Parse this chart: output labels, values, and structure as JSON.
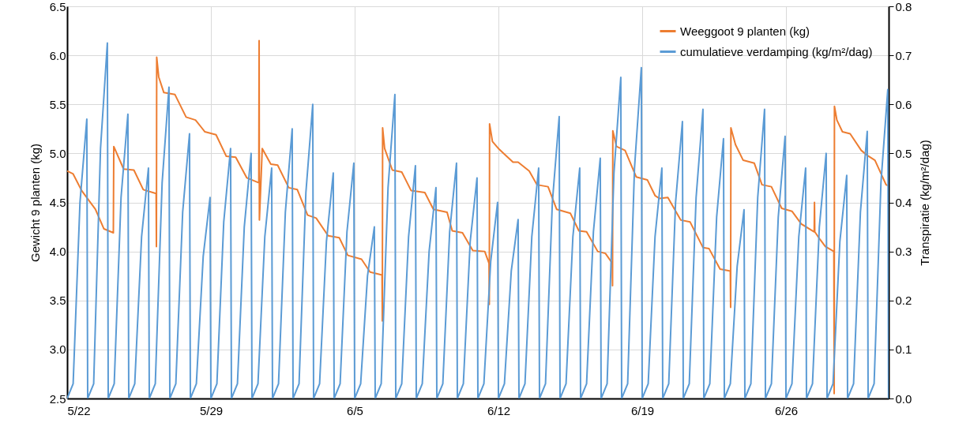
{
  "chart_data": {
    "type": "line",
    "ylabel": "Gewicht 9 planten (kg)",
    "y2label": "Transpiratie (kg/m²/dag)",
    "xlim": [
      "--05-22",
      "--07-01"
    ],
    "xticks": [
      {
        "value": "--05-22",
        "label": "5/22"
      },
      {
        "value": "--05-29",
        "label": "5/29"
      },
      {
        "value": "--06-05",
        "label": "6/5"
      },
      {
        "value": "--06-12",
        "label": "6/12"
      },
      {
        "value": "--06-19",
        "label": "6/19"
      },
      {
        "value": "--06-26",
        "label": "6/26"
      }
    ],
    "ylim": [
      2.5,
      6.5
    ],
    "yticks": [
      2.5,
      {
        "value": 3,
        "label": "3.0"
      },
      3.5,
      {
        "value": 4,
        "label": "4.0"
      },
      4.5,
      {
        "value": 5,
        "label": "5.0"
      },
      5.5,
      {
        "value": 6,
        "label": "6.0"
      },
      6.5
    ],
    "y2lim": [
      0,
      0.8
    ],
    "y2ticks": [
      {
        "value": 0,
        "label": "0.0"
      },
      0.1,
      0.2,
      0.3,
      0.4,
      0.5,
      0.6,
      0.7,
      0.8
    ],
    "grid": true,
    "legend": "top right",
    "line_style": "solid",
    "series": [
      {
        "name": "Weeggoot 9 planten (kg)",
        "color": "#ed7d31",
        "axis": "y",
        "x": [
          "--05-22T00:00",
          "--05-22T07:00",
          "--05-22T17:00",
          "--05-23T09:00",
          "--05-23T19:00",
          "--05-24T06:00",
          "--05-24T06:30",
          "--05-24T18:00",
          "--05-25T06:00",
          "--05-25T17:00",
          "--05-26T08:00",
          "--05-26T08:20",
          "--05-26T08:40",
          "--05-26T11:00",
          "--05-26T17:00",
          "--05-27T06:00",
          "--05-27T19:00",
          "--05-28T06:00",
          "--05-28T17:00",
          "--05-29T06:00",
          "--05-29T18:00",
          "--05-30T05:00",
          "--05-30T18:00",
          "--05-31T08:00",
          "--05-31T08:20",
          "--05-31T08:40",
          "--05-31T12:00",
          "--05-31T22:00",
          "--06-01T06:00",
          "--06-01T19:00",
          "--06-02T05:00",
          "--06-02T17:00",
          "--06-03T03:00",
          "--06-03T17:00",
          "--06-04T06:00",
          "--06-04T16:00",
          "--06-05T08:00",
          "--06-05T18:00",
          "--06-06T08:00",
          "--06-06T08:20",
          "--06-06T08:40",
          "--06-06T11:00",
          "--06-06T20:00",
          "--06-07T07:00",
          "--06-07T18:00",
          "--06-08T10:00",
          "--06-08T20:00",
          "--06-09T12:00",
          "--06-09T18:00",
          "--06-10T06:00",
          "--06-10T18:00",
          "--06-11T08:00",
          "--06-11T13:00",
          "--06-11T13:20",
          "--06-11T13:40",
          "--06-11T17:00",
          "--06-12T00:00",
          "--06-12T17:00",
          "--06-12T23:00",
          "--06-13T12:00",
          "--06-13T21:00",
          "--06-14T10:00",
          "--06-14T20:00",
          "--06-15T12:00",
          "--06-15T22:00",
          "--06-16T07:00",
          "--06-16T20:00",
          "--06-17T05:00",
          "--06-17T13:00",
          "--06-17T13:20",
          "--06-17T13:40",
          "--06-17T18:00",
          "--06-18T04:00",
          "--06-18T17:00",
          "--06-19T06:00",
          "--06-19T15:00",
          "--06-19T20:00",
          "--06-20T06:00",
          "--06-20T21:00",
          "--06-21T08:00",
          "--06-21T23:00",
          "--06-22T06:00",
          "--06-22T19:00",
          "--06-23T07:00",
          "--06-23T07:20",
          "--06-23T07:40",
          "--06-23T13:00",
          "--06-23T22:00",
          "--06-24T11:00",
          "--06-24T20:00",
          "--06-25T07:00",
          "--06-25T19:00",
          "--06-26T07:00",
          "--06-26T18:00",
          "--06-27T09:00",
          "--06-27T09:20",
          "--06-27T09:40",
          "--06-27T16:00",
          "--06-27T22:00",
          "--06-28T08:00",
          "--06-28T08:20",
          "--06-28T08:40",
          "--06-28T11:30",
          "--06-28T18:00",
          "--06-29T03:00",
          "--06-29T16:00",
          "--06-29T23:00",
          "--06-30T08:00",
          "--06-30T21:00",
          "--06-30T23:30"
        ],
        "values": [
          4.82,
          4.79,
          4.62,
          4.43,
          4.23,
          4.19,
          5.07,
          4.84,
          4.83,
          4.63,
          4.59,
          4.05,
          5.98,
          5.78,
          5.62,
          5.6,
          5.37,
          5.34,
          5.22,
          5.19,
          4.97,
          4.96,
          4.75,
          4.7,
          6.15,
          4.32,
          5.05,
          4.89,
          4.88,
          4.65,
          4.63,
          4.37,
          4.34,
          4.16,
          4.14,
          3.96,
          3.92,
          3.79,
          3.76,
          3.29,
          5.26,
          5.05,
          4.83,
          4.81,
          4.62,
          4.6,
          4.43,
          4.4,
          4.21,
          4.19,
          4.01,
          4.0,
          3.88,
          3.46,
          5.3,
          5.12,
          5.05,
          4.91,
          4.91,
          4.82,
          4.68,
          4.66,
          4.43,
          4.39,
          4.21,
          4.2,
          4.0,
          3.98,
          3.88,
          3.65,
          5.23,
          5.07,
          5.03,
          4.76,
          4.73,
          4.57,
          4.54,
          4.55,
          4.32,
          4.3,
          4.04,
          4.03,
          3.82,
          3.8,
          3.43,
          5.26,
          5.09,
          4.93,
          4.9,
          4.68,
          4.66,
          4.44,
          4.41,
          4.28,
          4.2,
          4.5,
          4.2,
          4.12,
          4.05,
          4.0,
          2.55,
          5.48,
          5.34,
          5.22,
          5.2,
          5.03,
          4.98,
          4.93,
          4.68,
          4.67
        ]
      },
      {
        "name": "cumulatieve verdamping (kg/m²/dag)",
        "color": "#5b9bd5",
        "axis": "y2",
        "x": [
          "--05-22T00:00",
          "--05-22T07:00",
          "--05-22T15:00",
          "--05-22T23:00",
          "--05-23T00:00",
          "--05-23T07:00",
          "--05-23T15:00",
          "--05-23T23:00",
          "--05-24T00:00",
          "--05-24T07:00",
          "--05-24T15:00",
          "--05-24T23:00",
          "--05-25T00:00",
          "--05-25T07:00",
          "--05-25T15:00",
          "--05-25T23:00",
          "--05-26T00:00",
          "--05-26T07:00",
          "--05-26T15:00",
          "--05-26T23:00",
          "--05-27T00:00",
          "--05-27T07:00",
          "--05-27T15:00",
          "--05-27T23:00",
          "--05-28T00:00",
          "--05-28T07:00",
          "--05-28T15:00",
          "--05-28T23:00",
          "--05-29T00:00",
          "--05-29T07:00",
          "--05-29T15:00",
          "--05-29T23:00",
          "--05-30T00:00",
          "--05-30T07:00",
          "--05-30T15:00",
          "--05-30T23:00",
          "--05-31T00:00",
          "--05-31T07:00",
          "--05-31T15:00",
          "--05-31T23:00",
          "--06-01T00:00",
          "--06-01T07:00",
          "--06-01T15:00",
          "--06-01T23:00",
          "--06-02T00:00",
          "--06-02T07:00",
          "--06-02T15:00",
          "--06-02T23:00",
          "--06-03T00:00",
          "--06-03T07:00",
          "--06-03T15:00",
          "--06-03T23:00",
          "--06-04T00:00",
          "--06-04T07:00",
          "--06-04T15:00",
          "--06-04T23:00",
          "--06-05T00:00",
          "--06-05T07:00",
          "--06-05T15:00",
          "--06-05T23:00",
          "--06-06T00:00",
          "--06-06T07:00",
          "--06-06T15:00",
          "--06-06T23:00",
          "--06-07T00:00",
          "--06-07T07:00",
          "--06-07T15:00",
          "--06-07T23:00",
          "--06-08T00:00",
          "--06-08T07:00",
          "--06-08T15:00",
          "--06-08T23:00",
          "--06-09T00:00",
          "--06-09T07:00",
          "--06-09T15:00",
          "--06-09T23:00",
          "--06-10T00:00",
          "--06-10T07:00",
          "--06-10T15:00",
          "--06-10T23:00",
          "--06-11T00:00",
          "--06-11T07:00",
          "--06-11T15:00",
          "--06-11T23:00",
          "--06-12T00:00",
          "--06-12T07:00",
          "--06-12T15:00",
          "--06-12T23:00",
          "--06-13T00:00",
          "--06-13T07:00",
          "--06-13T15:00",
          "--06-13T23:00",
          "--06-14T00:00",
          "--06-14T07:00",
          "--06-14T15:00",
          "--06-14T23:00",
          "--06-15T00:00",
          "--06-15T07:00",
          "--06-15T15:00",
          "--06-15T23:00",
          "--06-16T00:00",
          "--06-16T07:00",
          "--06-16T15:00",
          "--06-16T23:00",
          "--06-17T00:00",
          "--06-17T07:00",
          "--06-17T15:00",
          "--06-17T23:00",
          "--06-18T00:00",
          "--06-18T07:00",
          "--06-18T15:00",
          "--06-18T23:00",
          "--06-19T00:00",
          "--06-19T07:00",
          "--06-19T15:00",
          "--06-19T23:00",
          "--06-20T00:00",
          "--06-20T07:00",
          "--06-20T15:00",
          "--06-20T23:00",
          "--06-21T00:00",
          "--06-21T07:00",
          "--06-21T15:00",
          "--06-21T23:00",
          "--06-22T00:00",
          "--06-22T07:00",
          "--06-22T15:00",
          "--06-22T23:00",
          "--06-23T00:00",
          "--06-23T07:00",
          "--06-23T15:00",
          "--06-23T23:00",
          "--06-24T00:00",
          "--06-24T07:00",
          "--06-24T15:00",
          "--06-24T23:00",
          "--06-25T00:00",
          "--06-25T07:00",
          "--06-25T15:00",
          "--06-25T23:00",
          "--06-26T00:00",
          "--06-26T07:00",
          "--06-26T15:00",
          "--06-26T23:00",
          "--06-27T00:00",
          "--06-27T07:00",
          "--06-27T15:00",
          "--06-27T23:00",
          "--06-28T00:00",
          "--06-28T07:00",
          "--06-28T15:00",
          "--06-28T23:00",
          "--06-29T00:00",
          "--06-29T07:00",
          "--06-29T15:00",
          "--06-29T23:00",
          "--06-30T00:00",
          "--06-30T07:00",
          "--06-30T15:00",
          "--06-30T23:00",
          "--06-30T23:50"
        ],
        "values": [
          0,
          0.03,
          0.4,
          0.57,
          0,
          0.03,
          0.51,
          0.725,
          0,
          0.03,
          0.41,
          0.58,
          0,
          0.03,
          0.33,
          0.47,
          0,
          0.03,
          0.44,
          0.635,
          0,
          0.03,
          0.38,
          0.54,
          0,
          0.03,
          0.29,
          0.41,
          0,
          0.03,
          0.36,
          0.51,
          0,
          0.03,
          0.35,
          0.5,
          0,
          0.03,
          0.33,
          0.47,
          0,
          0.03,
          0.38,
          0.55,
          0,
          0.03,
          0.42,
          0.6,
          0,
          0.03,
          0.32,
          0.46,
          0,
          0.03,
          0.34,
          0.48,
          0,
          0.03,
          0.25,
          0.35,
          0,
          0.03,
          0.43,
          0.62,
          0,
          0.03,
          0.33,
          0.475,
          0,
          0.03,
          0.3,
          0.43,
          0,
          0.03,
          0.34,
          0.48,
          0,
          0.03,
          0.32,
          0.45,
          0,
          0.03,
          0.28,
          0.4,
          0,
          0.03,
          0.26,
          0.365,
          0,
          0.03,
          0.33,
          0.47,
          0,
          0.03,
          0.4,
          0.575,
          0,
          0.03,
          0.33,
          0.47,
          0,
          0.03,
          0.34,
          0.49,
          0,
          0.03,
          0.46,
          0.655,
          0,
          0.03,
          0.47,
          0.675,
          0,
          0.03,
          0.33,
          0.47,
          0,
          0.03,
          0.4,
          0.565,
          0,
          0.03,
          0.41,
          0.59,
          0,
          0.03,
          0.37,
          0.53,
          0,
          0.03,
          0.27,
          0.385,
          0,
          0.03,
          0.41,
          0.59,
          0,
          0.03,
          0.37,
          0.535,
          0,
          0.03,
          0.33,
          0.47,
          0,
          0.03,
          0.35,
          0.5,
          0,
          0.03,
          0.32,
          0.455,
          0,
          0.03,
          0.38,
          0.545,
          0,
          0.03,
          0.44,
          0.63,
          0
        ]
      }
    ]
  }
}
